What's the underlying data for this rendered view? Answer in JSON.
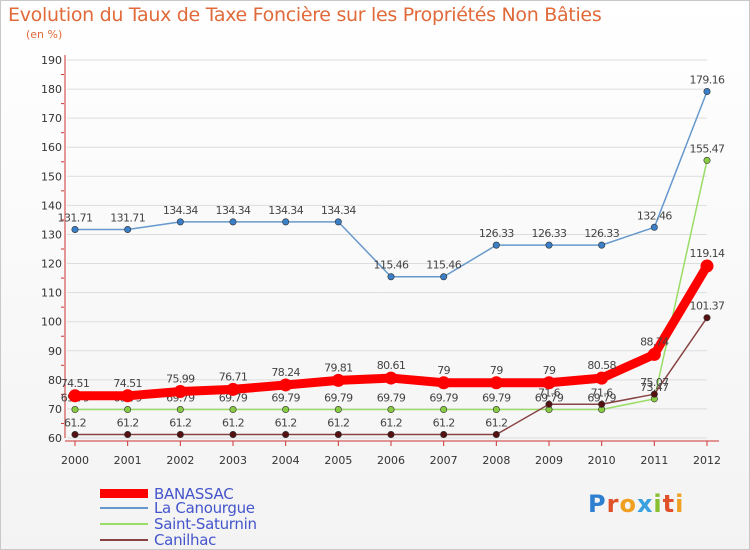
{
  "title": "Evolution du Taux de Taxe Foncière sur les Propriétés Non Bâties",
  "unit": "(en %)",
  "logo": "Proxiti",
  "chart_data": {
    "type": "line",
    "title": "Evolution du Taux de Taxe Foncière sur les Propriétés Non Bâties",
    "ylabel": "(en %)",
    "xlabel": "",
    "ylim": [
      60,
      190
    ],
    "yticks": [
      60,
      70,
      80,
      90,
      100,
      110,
      120,
      130,
      140,
      150,
      160,
      170,
      180,
      190
    ],
    "x": [
      "2000",
      "2001",
      "2002",
      "2003",
      "2004",
      "2005",
      "2006",
      "2007",
      "2008",
      "2009",
      "2010",
      "2011",
      "2012"
    ],
    "series": [
      {
        "name": "La Canourgue",
        "color": "#6699cc",
        "marker": "#3a7fc8",
        "values": [
          131.71,
          131.71,
          134.34,
          134.34,
          134.34,
          134.34,
          115.46,
          115.46,
          126.33,
          126.33,
          126.33,
          132.46,
          179.16
        ],
        "labels": [
          "131.71",
          "131.71",
          "134.34",
          "134.34",
          "134.34",
          "134.34",
          "115.46",
          "115.46",
          "126.33",
          "126.33",
          "126.33",
          "132.46",
          "179.16"
        ]
      },
      {
        "name": "Saint-Saturnin",
        "color": "#99dd66",
        "marker": "#88cc44",
        "values": [
          69.79,
          69.79,
          69.79,
          69.79,
          69.79,
          69.79,
          69.79,
          69.79,
          69.79,
          69.79,
          69.79,
          73.47,
          155.47
        ],
        "labels": [
          "69.79",
          "69.79",
          "69.79",
          "69.79",
          "69.79",
          "69.79",
          "69.79",
          "69.79",
          "69.79",
          "69.79",
          "69.79",
          "73.47",
          "155.47"
        ]
      },
      {
        "name": "Canilhac",
        "color": "#884444",
        "marker": "#551111",
        "values": [
          61.2,
          61.2,
          61.2,
          61.2,
          61.2,
          61.2,
          61.2,
          61.2,
          61.2,
          71.6,
          71.6,
          75.07,
          101.37
        ],
        "labels": [
          "61.2",
          "61.2",
          "61.2",
          "61.2",
          "61.2",
          "61.2",
          "61.2",
          "61.2",
          "61.2",
          "71.6",
          "71.6",
          "75.07",
          "101.37"
        ]
      },
      {
        "name": "BANASSAC",
        "color": "#ff0000",
        "marker": "#ff0000",
        "values": [
          74.51,
          74.51,
          75.99,
          76.71,
          78.24,
          79.81,
          80.61,
          79,
          79,
          79,
          80.58,
          88.74,
          119.14
        ],
        "labels": [
          "74.51",
          "74.51",
          "75.99",
          "76.71",
          "78.24",
          "79.81",
          "80.61",
          "79",
          "79",
          "79",
          "80.58",
          "88.74",
          "119.14"
        ]
      }
    ],
    "legend": [
      "BANASSAC",
      "La Canourgue",
      "Saint-Saturnin",
      "Canilhac"
    ]
  }
}
